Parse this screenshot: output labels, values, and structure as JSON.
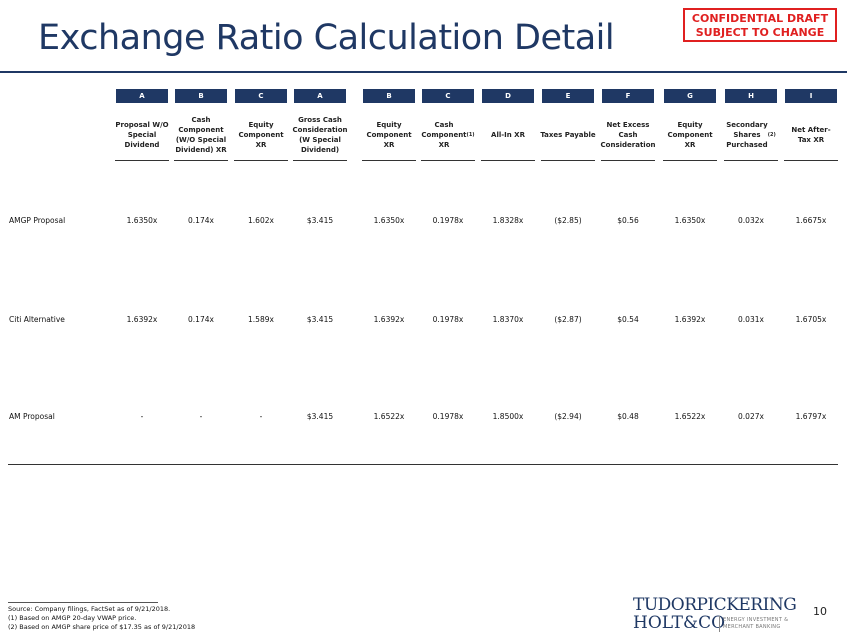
{
  "title": "Exchange Ratio Calculation Detail",
  "confidential": {
    "line1": "CONFIDENTIAL DRAFT",
    "line2": "SUBJECT TO CHANGE"
  },
  "colors": {
    "navy": "#1f3864",
    "red": "#e02020"
  },
  "letters": [
    "A",
    "B",
    "C",
    "A",
    "B",
    "C",
    "D",
    "E",
    "F",
    "G",
    "H",
    "I"
  ],
  "headers": [
    "Proposal W/O\nSpecial\nDividend",
    "Cash\nComponent\n(W/O Special\nDividend) XR",
    "Equity\nComponent\nXR",
    "Gross Cash\nConsideration\n(W Special\nDividend)",
    "Equity\nComponent\nXR",
    "Cash\nComponent\nXR(1)",
    "All-In XR",
    "Taxes Payable",
    "Net Excess\nCash\nConsideration",
    "Equity\nComponent\nXR",
    "Secondary\nShares\nPurchased(2)",
    "Net After-\nTax XR"
  ],
  "rows": [
    {
      "label": "AMGP Proposal",
      "values": [
        "1.6350x",
        "0.174x",
        "1.602x",
        "$3.415",
        "1.6350x",
        "0.1978x",
        "1.8328x",
        "($2.85)",
        "$0.56",
        "1.6350x",
        "0.032x",
        "1.6675x"
      ]
    },
    {
      "label": "Citi Alternative",
      "values": [
        "1.6392x",
        "0.174x",
        "1.589x",
        "$3.415",
        "1.6392x",
        "0.1978x",
        "1.8370x",
        "($2.87)",
        "$0.54",
        "1.6392x",
        "0.031x",
        "1.6705x"
      ]
    },
    {
      "label": "AM Proposal",
      "values": [
        "-",
        "-",
        "-",
        "$3.415",
        "1.6522x",
        "0.1978x",
        "1.8500x",
        "($2.94)",
        "$0.48",
        "1.6522x",
        "0.027x",
        "1.6797x"
      ]
    }
  ],
  "footnotes": {
    "source": "Source: Company filings, FactSet as of 9/21/2018.",
    "n1": "(1)     Based on AMGP 20-day VWAP price.",
    "n2": "(2)     Based on AMGP share price of $17.35 as of 9/21/2018"
  },
  "logo": {
    "line1": "TUDORPICKERING",
    "line2": "HOLT&CO",
    "sub1": "ENERGY INVESTMENT &",
    "sub2": "MERCHANT BANKING"
  },
  "page_number": "10"
}
